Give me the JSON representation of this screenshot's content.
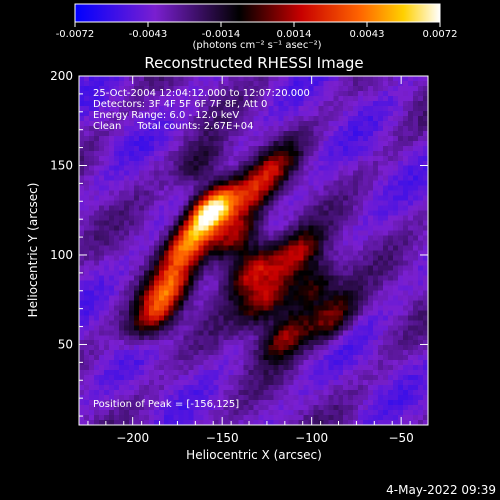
{
  "colorbar": {
    "ticks": [
      "-0.0072",
      "-0.0043",
      "-0.0014",
      "0.0014",
      "0.0043",
      "0.0072"
    ],
    "unit_label": "(photons cm⁻² s⁻¹ asec⁻²)",
    "range": [
      -0.0072,
      0.0072
    ]
  },
  "chart_data": {
    "type": "heatmap",
    "title": "Reconstructed RHESSI Image",
    "xlabel": "Heliocentric X (arcsec)",
    "ylabel": "Heliocentric Y (arcsec)",
    "xlim": [
      -230,
      -35
    ],
    "ylim": [
      5,
      200
    ],
    "xticks": [
      -200,
      -150,
      -100,
      -50
    ],
    "yticks": [
      50,
      100,
      150,
      200
    ],
    "colormap": "RHESSI thermal (blue-purple-black-red-orange-yellow-white)",
    "peak": {
      "x": -156,
      "y": 125
    },
    "sources": [
      {
        "x": -156,
        "y": 125,
        "intensity": 1.0
      },
      {
        "x": -170,
        "y": 105,
        "intensity": 0.55
      },
      {
        "x": -180,
        "y": 82,
        "intensity": 0.5
      },
      {
        "x": -188,
        "y": 65,
        "intensity": 0.45
      },
      {
        "x": -142,
        "y": 110,
        "intensity": 0.5
      },
      {
        "x": -133,
        "y": 92,
        "intensity": 0.5
      },
      {
        "x": -125,
        "y": 75,
        "intensity": 0.45
      },
      {
        "x": -115,
        "y": 55,
        "intensity": 0.42
      },
      {
        "x": -108,
        "y": 100,
        "intensity": 0.42
      },
      {
        "x": -100,
        "y": 82,
        "intensity": 0.4
      },
      {
        "x": -88,
        "y": 65,
        "intensity": 0.38
      },
      {
        "x": -133,
        "y": 135,
        "intensity": 0.35
      },
      {
        "x": -120,
        "y": 150,
        "intensity": 0.28
      },
      {
        "x": -162,
        "y": 150,
        "intensity": 0.25
      }
    ],
    "annotations": [
      "25-Oct-2004 12:04:12.000 to 12:07:20.000",
      "Detectors: 3F 4F 5F 6F 7F 8F, Att 0",
      "Energy Range: 6.0 - 12.0 keV",
      "Clean     Total counts: 2.67E+04"
    ],
    "peak_label": "Position of Peak = [-156,125]"
  },
  "footer": {
    "timestamp": "4-May-2022 09:39"
  }
}
